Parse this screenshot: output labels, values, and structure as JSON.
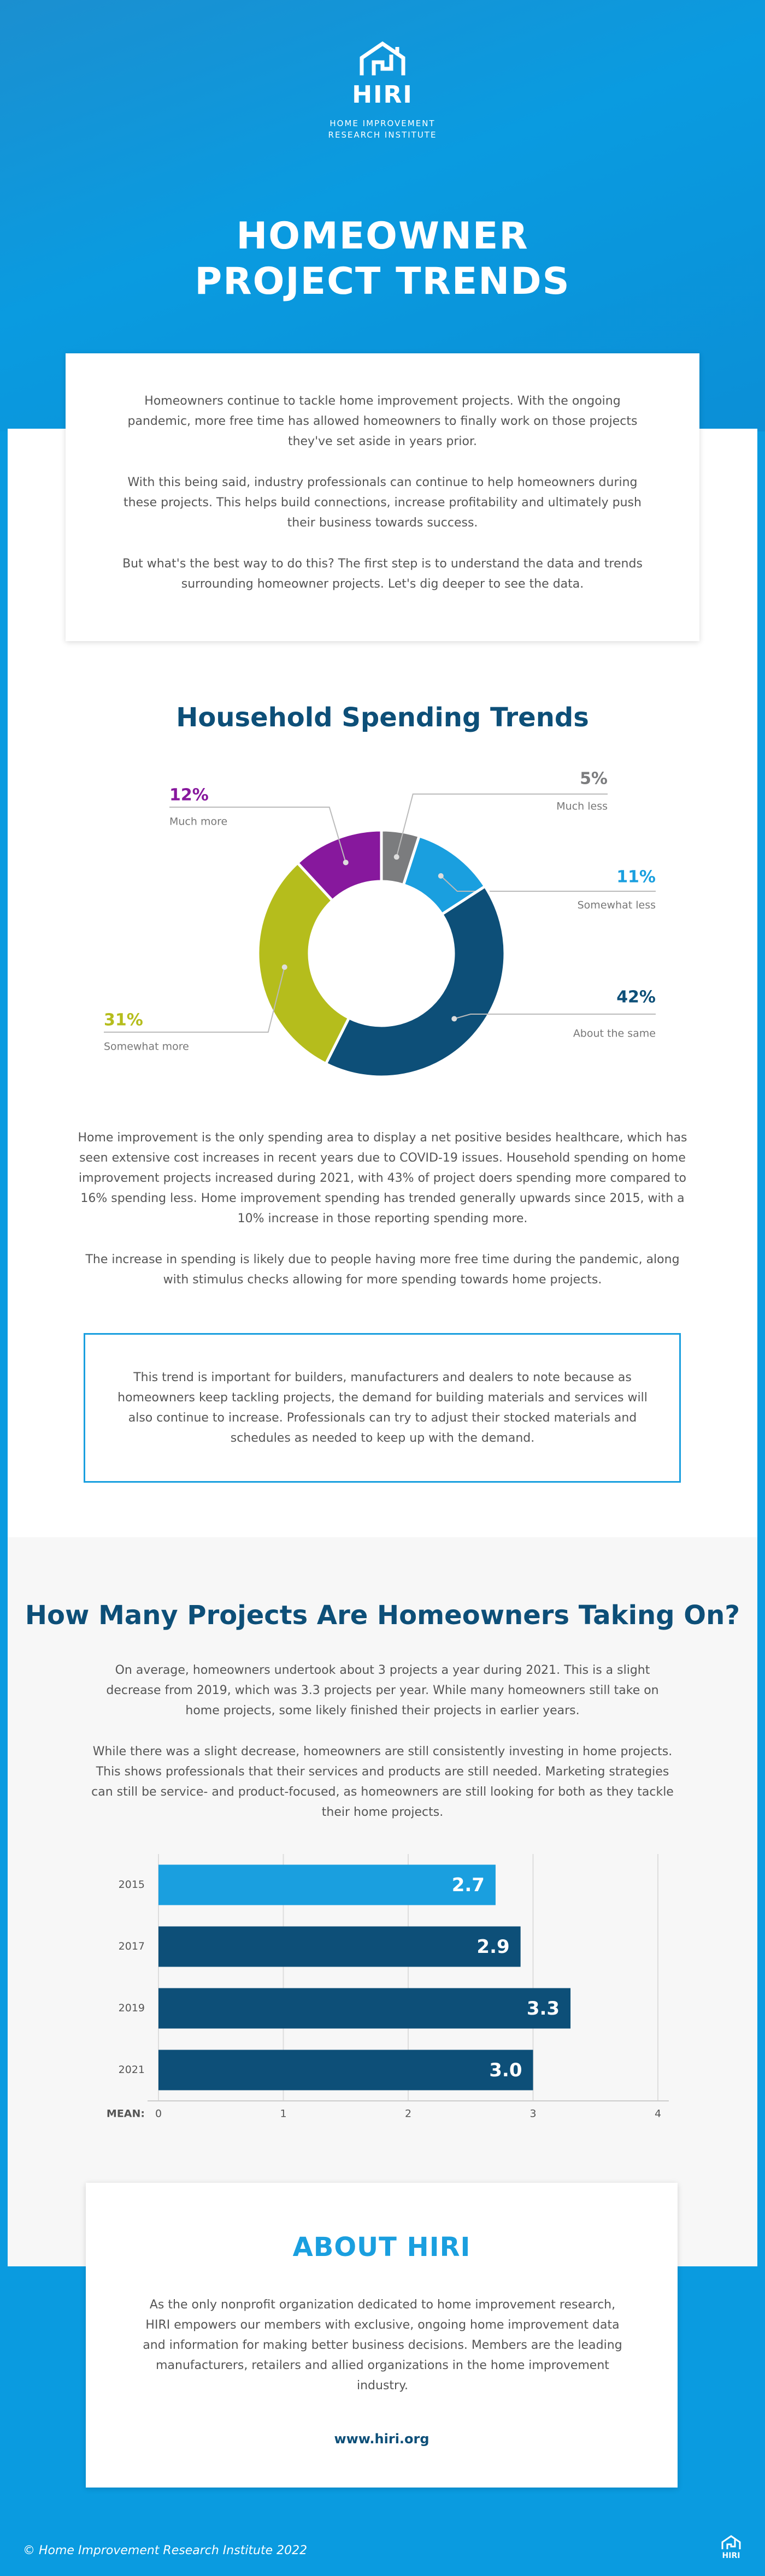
{
  "header": {
    "logo": "HIRI",
    "logo_sub": [
      "HOME IMPROVEMENT",
      "RESEARCH INSTITUTE"
    ],
    "title_lines": [
      "HOMEOWNER",
      "PROJECT TRENDS"
    ]
  },
  "intro": [
    "Homeowners continue to tackle home improvement projects. With the ongoing pandemic, more free time has allowed homeowners to finally work on those projects they've set aside in years prior.",
    "With this being said, industry professionals can continue to help homeowners during these projects. This helps build connections, increase profitability and ultimately push their business towards success.",
    "But what's the best way to do this? The first step is to understand the data and trends surrounding homeowner projects. Let's dig deeper to see the data."
  ],
  "spending_text": [
    "Home improvement is the only spending area to display a net positive besides healthcare, which has seen extensive cost increases in recent years due to COVID-19 issues. Household spending on home improvement projects increased during 2021, with 43% of project doers spending more compared to 16% spending less. Home improvement spending has trended generally upwards since 2015, with a 10% increase in those reporting spending more.",
    "The increase in spending is likely due to people having more free time during the pandemic, along with stimulus checks allowing for more spending towards home projects."
  ],
  "callout": "This trend is important for builders, manufacturers and dealers to note because as homeowners keep tackling projects, the demand for building materials and services will also continue to increase. Professionals can try to adjust their stocked materials and schedules as needed to keep up with the demand.",
  "projects_text": [
    "On average, homeowners undertook about 3 projects a year during 2021. This is a slight decrease from 2019, which was 3.3 projects per year. While many homeowners still take on home projects, some likely finished their projects in earlier years.",
    "While there was a slight decrease, homeowners are still consistently investing in home projects. This shows professionals that their services and products are still needed. Marketing strategies can still be service- and product-focused, as homeowners are still looking for both as they tackle their home projects."
  ],
  "chart_data": [
    {
      "type": "donut",
      "title": "Household Spending Trends",
      "categories": [
        "Much less",
        "Somewhat less",
        "About the same",
        "Somewhat more",
        "Much more"
      ],
      "values": [
        5,
        11,
        42,
        31,
        12
      ],
      "value_labels": [
        "5%",
        "11%",
        "42%",
        "31%",
        "12%"
      ],
      "colors": [
        "#7b7c7e",
        "#1a9fdf",
        "#0d4f78",
        "#b5bd1c",
        "#87189d"
      ]
    },
    {
      "type": "hbar",
      "title": "How Many Projects Are Homeowners Taking On?",
      "categories": [
        "2015",
        "2017",
        "2019",
        "2021"
      ],
      "values": [
        2.7,
        2.9,
        3.3,
        3.0
      ],
      "value_labels": [
        "2.7",
        "2.9",
        "3.3",
        "3.0"
      ],
      "colors": [
        "#1a9fdf",
        "#0d4f78",
        "#0d4f78",
        "#0d4f78"
      ],
      "xlabel": "MEAN:",
      "xlim": [
        0,
        4
      ],
      "xticks": [
        0,
        1,
        2,
        3,
        4
      ],
      "grid": true
    }
  ],
  "about": {
    "title": "ABOUT HIRI",
    "text": "As the only nonprofit organization dedicated to home improvement research, HIRI empowers our members with exclusive, ongoing home improvement data and information for making better business decisions. Members are the leading manufacturers, retailers and allied organizations in the home improvement industry.",
    "url": "www.hiri.org"
  },
  "footer": {
    "copyright": "© Home Improvement Research Institute 2022",
    "logo": "HIRI"
  }
}
